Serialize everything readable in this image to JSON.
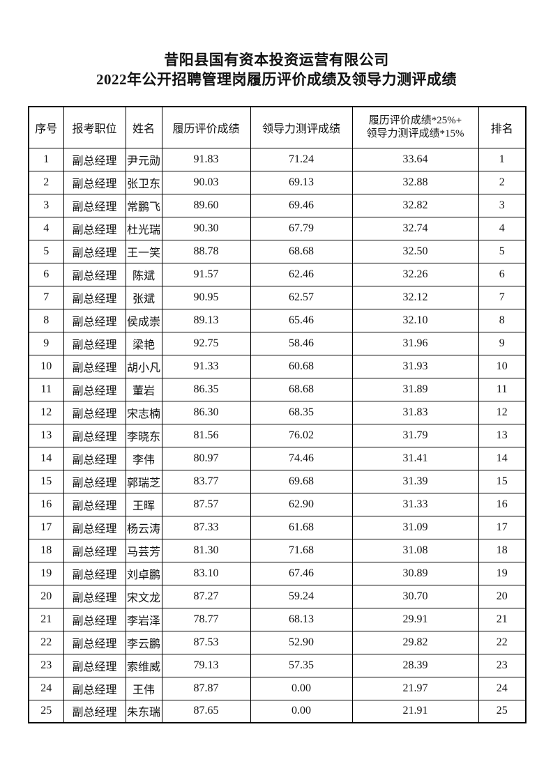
{
  "document": {
    "title_line1": "昔阳县国有资本投资运营有限公司",
    "title_line2": "2022年公开招聘管理岗履历评价成绩及领导力测评成绩"
  },
  "table": {
    "headers": {
      "seq": "序号",
      "position": "报考职位",
      "name": "姓名",
      "resume_score": "履历评价成绩",
      "leadership_score": "领导力测评成绩",
      "combined_line1": "履历评价成绩*25%+",
      "combined_line2": "领导力测评成绩*15%",
      "rank": "排名"
    },
    "rows": [
      {
        "seq": "1",
        "position": "副总经理",
        "name": "尹元勋",
        "resume_score": "91.83",
        "leadership_score": "71.24",
        "combined_score": "33.64",
        "rank": "1"
      },
      {
        "seq": "2",
        "position": "副总经理",
        "name": "张卫东",
        "resume_score": "90.03",
        "leadership_score": "69.13",
        "combined_score": "32.88",
        "rank": "2"
      },
      {
        "seq": "3",
        "position": "副总经理",
        "name": "常鹏飞",
        "resume_score": "89.60",
        "leadership_score": "69.46",
        "combined_score": "32.82",
        "rank": "3"
      },
      {
        "seq": "4",
        "position": "副总经理",
        "name": "杜光瑞",
        "resume_score": "90.30",
        "leadership_score": "67.79",
        "combined_score": "32.74",
        "rank": "4"
      },
      {
        "seq": "5",
        "position": "副总经理",
        "name": "王一笑",
        "resume_score": "88.78",
        "leadership_score": "68.68",
        "combined_score": "32.50",
        "rank": "5"
      },
      {
        "seq": "6",
        "position": "副总经理",
        "name": "陈斌",
        "resume_score": "91.57",
        "leadership_score": "62.46",
        "combined_score": "32.26",
        "rank": "6"
      },
      {
        "seq": "7",
        "position": "副总经理",
        "name": "张斌",
        "resume_score": "90.95",
        "leadership_score": "62.57",
        "combined_score": "32.12",
        "rank": "7"
      },
      {
        "seq": "8",
        "position": "副总经理",
        "name": "侯成崇",
        "resume_score": "89.13",
        "leadership_score": "65.46",
        "combined_score": "32.10",
        "rank": "8"
      },
      {
        "seq": "9",
        "position": "副总经理",
        "name": "梁艳",
        "resume_score": "92.75",
        "leadership_score": "58.46",
        "combined_score": "31.96",
        "rank": "9"
      },
      {
        "seq": "10",
        "position": "副总经理",
        "name": "胡小凡",
        "resume_score": "91.33",
        "leadership_score": "60.68",
        "combined_score": "31.93",
        "rank": "10"
      },
      {
        "seq": "11",
        "position": "副总经理",
        "name": "董岩",
        "resume_score": "86.35",
        "leadership_score": "68.68",
        "combined_score": "31.89",
        "rank": "11"
      },
      {
        "seq": "12",
        "position": "副总经理",
        "name": "宋志楠",
        "resume_score": "86.30",
        "leadership_score": "68.35",
        "combined_score": "31.83",
        "rank": "12"
      },
      {
        "seq": "13",
        "position": "副总经理",
        "name": "李晓东",
        "resume_score": "81.56",
        "leadership_score": "76.02",
        "combined_score": "31.79",
        "rank": "13"
      },
      {
        "seq": "14",
        "position": "副总经理",
        "name": "李伟",
        "resume_score": "80.97",
        "leadership_score": "74.46",
        "combined_score": "31.41",
        "rank": "14"
      },
      {
        "seq": "15",
        "position": "副总经理",
        "name": "郭瑞芝",
        "resume_score": "83.77",
        "leadership_score": "69.68",
        "combined_score": "31.39",
        "rank": "15"
      },
      {
        "seq": "16",
        "position": "副总经理",
        "name": "王晖",
        "resume_score": "87.57",
        "leadership_score": "62.90",
        "combined_score": "31.33",
        "rank": "16"
      },
      {
        "seq": "17",
        "position": "副总经理",
        "name": "杨云涛",
        "resume_score": "87.33",
        "leadership_score": "61.68",
        "combined_score": "31.09",
        "rank": "17"
      },
      {
        "seq": "18",
        "position": "副总经理",
        "name": "马芸芳",
        "resume_score": "81.30",
        "leadership_score": "71.68",
        "combined_score": "31.08",
        "rank": "18"
      },
      {
        "seq": "19",
        "position": "副总经理",
        "name": "刘卓鹏",
        "resume_score": "83.10",
        "leadership_score": "67.46",
        "combined_score": "30.89",
        "rank": "19"
      },
      {
        "seq": "20",
        "position": "副总经理",
        "name": "宋文龙",
        "resume_score": "87.27",
        "leadership_score": "59.24",
        "combined_score": "30.70",
        "rank": "20"
      },
      {
        "seq": "21",
        "position": "副总经理",
        "name": "李岩泽",
        "resume_score": "78.77",
        "leadership_score": "68.13",
        "combined_score": "29.91",
        "rank": "21"
      },
      {
        "seq": "22",
        "position": "副总经理",
        "name": "李云鹏",
        "resume_score": "87.53",
        "leadership_score": "52.90",
        "combined_score": "29.82",
        "rank": "22"
      },
      {
        "seq": "23",
        "position": "副总经理",
        "name": "索维威",
        "resume_score": "79.13",
        "leadership_score": "57.35",
        "combined_score": "28.39",
        "rank": "23"
      },
      {
        "seq": "24",
        "position": "副总经理",
        "name": "王伟",
        "resume_score": "87.87",
        "leadership_score": "0.00",
        "combined_score": "21.97",
        "rank": "24"
      },
      {
        "seq": "25",
        "position": "副总经理",
        "name": "朱东瑞",
        "resume_score": "87.65",
        "leadership_score": "0.00",
        "combined_score": "21.91",
        "rank": "25"
      }
    ]
  }
}
